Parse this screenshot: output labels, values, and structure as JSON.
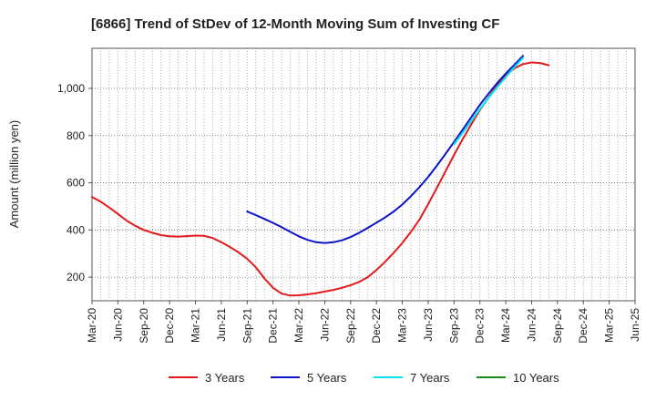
{
  "chart_data": {
    "type": "line",
    "title": "[6866]  Trend of StDev of 12-Month Moving Sum of Investing CF",
    "xlabel": "",
    "ylabel": "Amount (million yen)",
    "x_ticks": [
      "Mar-20",
      "Jun-20",
      "Sep-20",
      "Dec-20",
      "Mar-21",
      "Jun-21",
      "Sep-21",
      "Dec-21",
      "Mar-22",
      "Jun-22",
      "Sep-22",
      "Dec-22",
      "Mar-23",
      "Jun-23",
      "Sep-23",
      "Dec-23",
      "Mar-24",
      "Jun-24",
      "Sep-24",
      "Dec-24",
      "Mar-25",
      "Jun-25"
    ],
    "y_ticks": [
      200,
      400,
      600,
      800,
      1000
    ],
    "y_tick_labels": [
      "200",
      "400",
      "600",
      "800",
      "1,000"
    ],
    "xlim": [
      "2020-03",
      "2025-06"
    ],
    "ylim": [
      100,
      1170
    ],
    "grid": true,
    "legend_position": "bottom",
    "series": [
      {
        "name": "3 Years",
        "color": "#e31a1c",
        "points": [
          [
            "2020-03",
            540
          ],
          [
            "2020-04",
            520
          ],
          [
            "2020-05",
            495
          ],
          [
            "2020-06",
            468
          ],
          [
            "2020-07",
            440
          ],
          [
            "2020-08",
            418
          ],
          [
            "2020-09",
            400
          ],
          [
            "2020-10",
            388
          ],
          [
            "2020-11",
            378
          ],
          [
            "2020-12",
            373
          ],
          [
            "2021-01",
            372
          ],
          [
            "2021-02",
            374
          ],
          [
            "2021-03",
            376
          ],
          [
            "2021-04",
            375
          ],
          [
            "2021-05",
            366
          ],
          [
            "2021-06",
            348
          ],
          [
            "2021-07",
            328
          ],
          [
            "2021-08",
            305
          ],
          [
            "2021-09",
            278
          ],
          [
            "2021-10",
            242
          ],
          [
            "2021-11",
            195
          ],
          [
            "2021-12",
            155
          ],
          [
            "2022-01",
            130
          ],
          [
            "2022-02",
            122
          ],
          [
            "2022-03",
            123
          ],
          [
            "2022-04",
            127
          ],
          [
            "2022-05",
            132
          ],
          [
            "2022-06",
            139
          ],
          [
            "2022-07",
            146
          ],
          [
            "2022-08",
            155
          ],
          [
            "2022-09",
            166
          ],
          [
            "2022-10",
            180
          ],
          [
            "2022-11",
            200
          ],
          [
            "2022-12",
            230
          ],
          [
            "2023-01",
            265
          ],
          [
            "2023-02",
            303
          ],
          [
            "2023-03",
            345
          ],
          [
            "2023-04",
            392
          ],
          [
            "2023-05",
            445
          ],
          [
            "2023-06",
            510
          ],
          [
            "2023-07",
            578
          ],
          [
            "2023-08",
            648
          ],
          [
            "2023-09",
            718
          ],
          [
            "2023-10",
            785
          ],
          [
            "2023-11",
            848
          ],
          [
            "2023-12",
            908
          ],
          [
            "2024-01",
            962
          ],
          [
            "2024-02",
            1012
          ],
          [
            "2024-03",
            1055
          ],
          [
            "2024-04",
            1085
          ],
          [
            "2024-05",
            1103
          ],
          [
            "2024-06",
            1110
          ],
          [
            "2024-07",
            1108
          ],
          [
            "2024-08",
            1098
          ]
        ]
      },
      {
        "name": "5 Years",
        "color": "#0a14c8",
        "points": [
          [
            "2021-09",
            478
          ],
          [
            "2021-10",
            463
          ],
          [
            "2021-11",
            447
          ],
          [
            "2021-12",
            430
          ],
          [
            "2022-01",
            412
          ],
          [
            "2022-02",
            392
          ],
          [
            "2022-03",
            373
          ],
          [
            "2022-04",
            358
          ],
          [
            "2022-05",
            348
          ],
          [
            "2022-06",
            345
          ],
          [
            "2022-07",
            348
          ],
          [
            "2022-08",
            356
          ],
          [
            "2022-09",
            370
          ],
          [
            "2022-10",
            388
          ],
          [
            "2022-11",
            409
          ],
          [
            "2022-12",
            431
          ],
          [
            "2023-01",
            453
          ],
          [
            "2023-02",
            478
          ],
          [
            "2023-03",
            508
          ],
          [
            "2023-04",
            543
          ],
          [
            "2023-05",
            582
          ],
          [
            "2023-06",
            625
          ],
          [
            "2023-07",
            672
          ],
          [
            "2023-08",
            722
          ],
          [
            "2023-09",
            773
          ],
          [
            "2023-10",
            825
          ],
          [
            "2023-11",
            878
          ],
          [
            "2023-12",
            930
          ],
          [
            "2024-01",
            978
          ],
          [
            "2024-02",
            1022
          ],
          [
            "2024-03",
            1063
          ],
          [
            "2024-04",
            1100
          ],
          [
            "2024-05",
            1138
          ]
        ]
      },
      {
        "name": "7 Years",
        "color": "#00e5ee",
        "points": [
          [
            "2023-09",
            763
          ],
          [
            "2023-10",
            812
          ],
          [
            "2023-11",
            862
          ],
          [
            "2023-12",
            912
          ],
          [
            "2024-01",
            960
          ],
          [
            "2024-02",
            1005
          ],
          [
            "2024-03",
            1048
          ],
          [
            "2024-04",
            1090
          ],
          [
            "2024-05",
            1130
          ]
        ]
      },
      {
        "name": "10 Years",
        "color": "#1a8a1a",
        "points": []
      }
    ]
  }
}
